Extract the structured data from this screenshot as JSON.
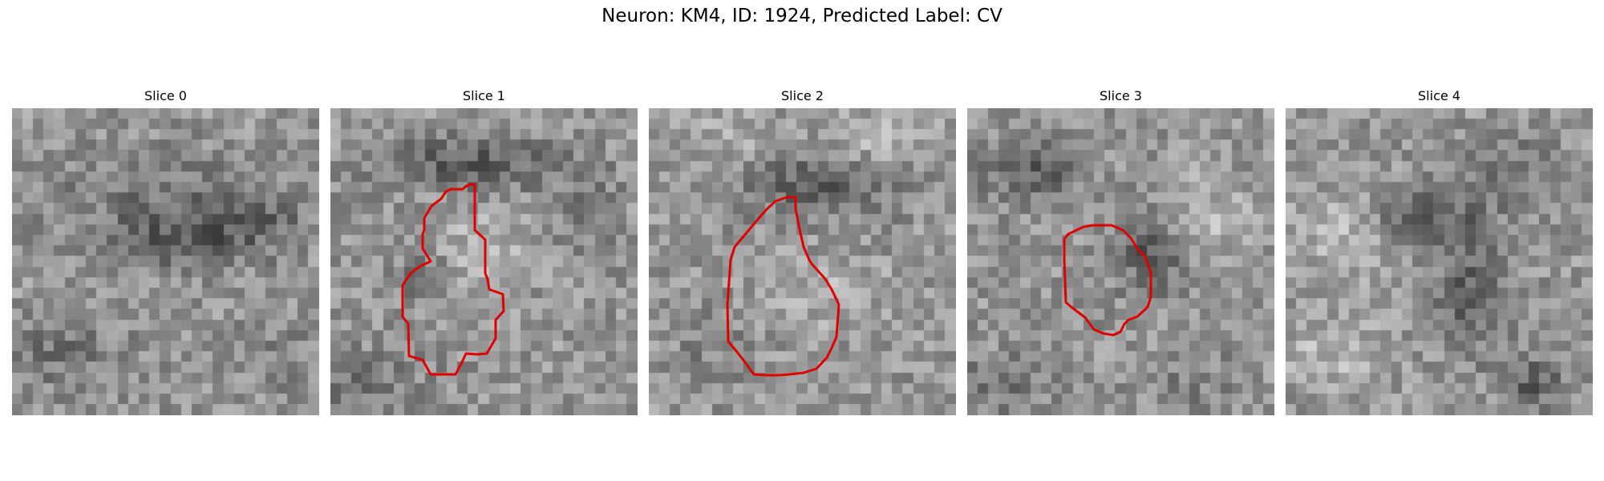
{
  "figure": {
    "title": "Neuron: KM4, ID: 1924, Predicted Label: CV"
  },
  "panels": [
    {
      "title": "Slice 0"
    },
    {
      "title": "Slice 1"
    },
    {
      "title": "Slice 2"
    },
    {
      "title": "Slice 3"
    },
    {
      "title": "Slice 4"
    }
  ],
  "colors": {
    "contour": "#e00000",
    "colormap": "grayscale"
  }
}
